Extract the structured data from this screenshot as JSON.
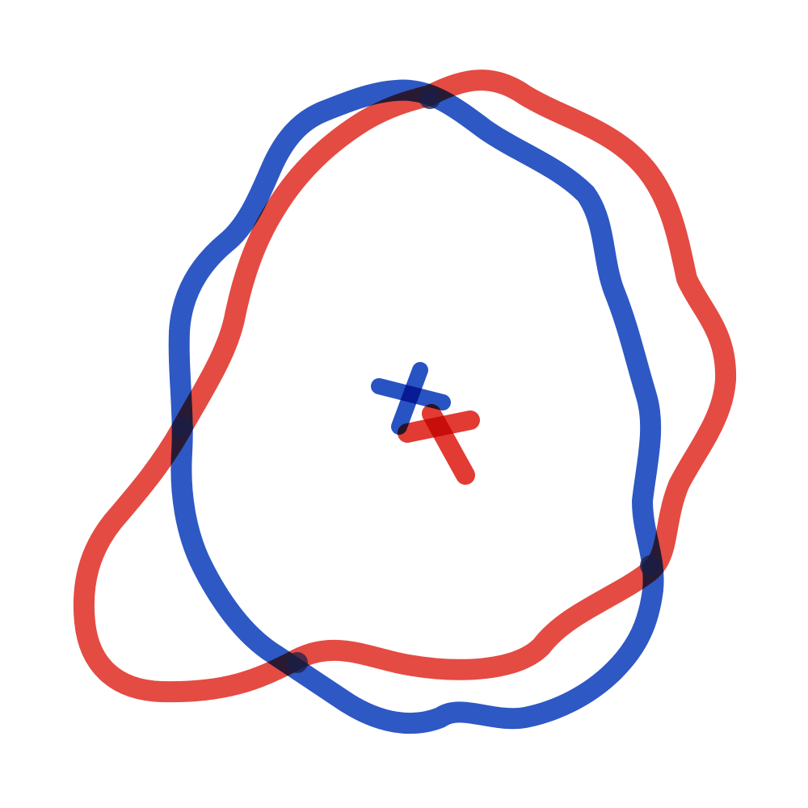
{
  "drawing": {
    "shapes": [
      {
        "name": "red-loop-shape",
        "kind": "loop",
        "color": "#e23b33"
      },
      {
        "name": "blue-loop-shape",
        "kind": "loop",
        "color": "#1c49bf"
      }
    ],
    "marks": [
      {
        "name": "blue-cross-mark",
        "kind": "cross",
        "color": "#1c49bf"
      },
      {
        "name": "red-cross-mark",
        "kind": "cross",
        "color": "#e23b33"
      }
    ],
    "overlap_color": "#1a1f4a"
  }
}
